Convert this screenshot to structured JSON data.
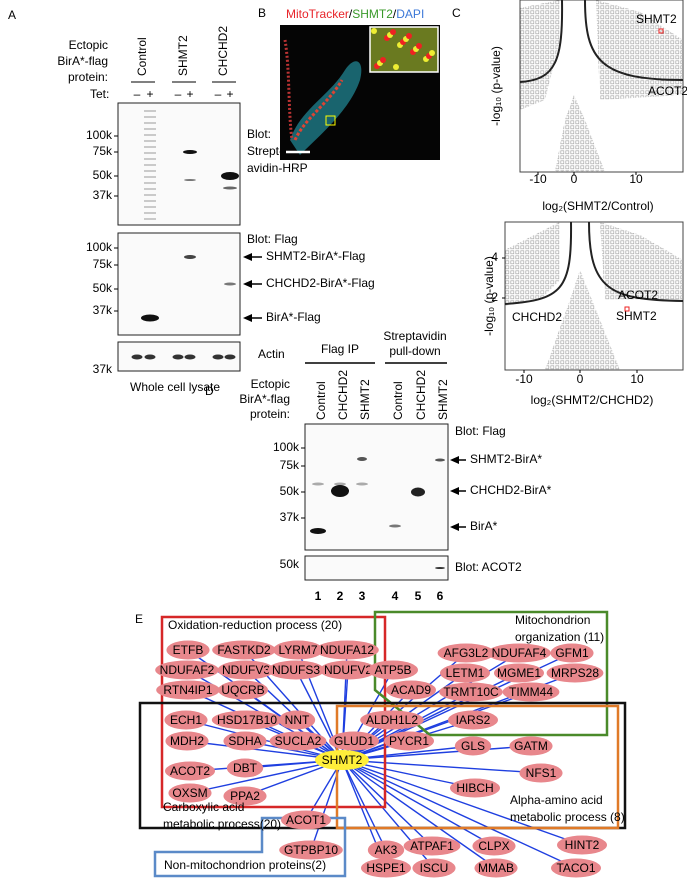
{
  "panel_a": {
    "label": "A",
    "ectopic": [
      "Ectopic",
      "BirA*-flag",
      "protein:"
    ],
    "lanes": [
      "Control",
      "SHMT2",
      "CHCHD2"
    ],
    "tet": "Tet:",
    "tet_signs": [
      "–",
      "+",
      "–",
      "+",
      "–",
      "+"
    ],
    "blot1": {
      "ladder": [
        "100k",
        "75k",
        "50k",
        "37k"
      ],
      "label": [
        "Blot:",
        "Strept-",
        "avidin-HRP"
      ]
    },
    "blot2": {
      "ladder": [
        "100k",
        "75k",
        "50k",
        "37k"
      ],
      "label": "Blot: Flag",
      "arrows": [
        "SHMT2-BirA*-Flag",
        "CHCHD2-BirA*-Flag",
        "BirA*-Flag"
      ]
    },
    "blot3": {
      "ladder": [
        "37k"
      ],
      "label": "Actin"
    },
    "caption": "Whole cell lysate"
  },
  "panel_b": {
    "label": "B",
    "title": [
      "MitoTracker",
      "/",
      "SHMT2",
      "/",
      "DAPI"
    ]
  },
  "panel_c": {
    "label": "C",
    "plots": [
      {
        "y_label": "-log₁₀ (p-value)",
        "x_label": "log₂(SHMT2/Control)",
        "xticks": [
          "-10",
          "0",
          "10"
        ],
        "points": [
          "SHMT2",
          "ACOT2"
        ]
      },
      {
        "y_label": "-log₁₀ (p-value)",
        "x_label": "log₂(SHMT2/CHCHD2)",
        "xticks": [
          "-10",
          "0",
          "10"
        ],
        "yticks": [
          "4",
          "2"
        ],
        "points": [
          "CHCHD2",
          "ACOT2",
          "SHMT2"
        ]
      }
    ]
  },
  "panel_d": {
    "label": "D",
    "groups": [
      "Flag IP",
      [
        "Streptavidin",
        "pull-down"
      ]
    ],
    "ectopic": [
      "Ectopic",
      "BirA*-flag",
      "protein:"
    ],
    "lanes": [
      "Control",
      "CHCHD2",
      "SHMT2",
      "Control",
      "CHCHD2",
      "SHMT2"
    ],
    "blot1": {
      "ladder": [
        "100k",
        "75k",
        "50k",
        "37k"
      ],
      "label": "Blot: Flag",
      "arrows": [
        "SHMT2-BirA*",
        "CHCHD2-BirA*",
        "BirA*"
      ]
    },
    "blot2": {
      "ladder": [
        "50k"
      ],
      "label": "Blot: ACOT2"
    },
    "lane_numbers": [
      "1",
      "2",
      "3",
      "4",
      "5",
      "6"
    ]
  },
  "panel_e": {
    "label": "E",
    "groups": [
      [
        "Oxidation-reduction process (20)"
      ],
      [
        "Mitochondrion",
        "organization (11)"
      ],
      [
        "Carboxylic acid",
        "metabolic process(20)"
      ],
      [
        "Alpha-amino acid",
        "metabolic process (8)"
      ],
      [
        "Non-mitochondrion proteins(2)"
      ]
    ],
    "center": "SHMT2",
    "nodes": [
      "ETFB",
      "FASTKD2",
      "LYRM7",
      "NDUFA12",
      "NDUFAF2",
      "NDUFV3",
      "NDUFS3",
      "NDUFV2",
      "RTN4IP1",
      "UQCRB",
      "ATP5B",
      "ACAD9",
      "AFG3L2",
      "NDUFAF4",
      "GFM1",
      "LETM1",
      "MGME1",
      "MRPS28",
      "TRMT10C",
      "TIMM44",
      "IARS2",
      "ECH1",
      "HSD17B10",
      "NNT",
      "ALDH1L2",
      "MDH2",
      "SDHA",
      "SUCLA2",
      "GLUD1",
      "PYCR1",
      "GLS",
      "GATM",
      "ACOT2",
      "DBT",
      "NFS1",
      "OXSM",
      "PPA2",
      "HIBCH",
      "ACOT1",
      "GTPBP10",
      "AK3",
      "ATPAF1",
      "CLPX",
      "HINT2",
      "HSPE1",
      "ISCU",
      "MMAB",
      "TACO1"
    ]
  }
}
